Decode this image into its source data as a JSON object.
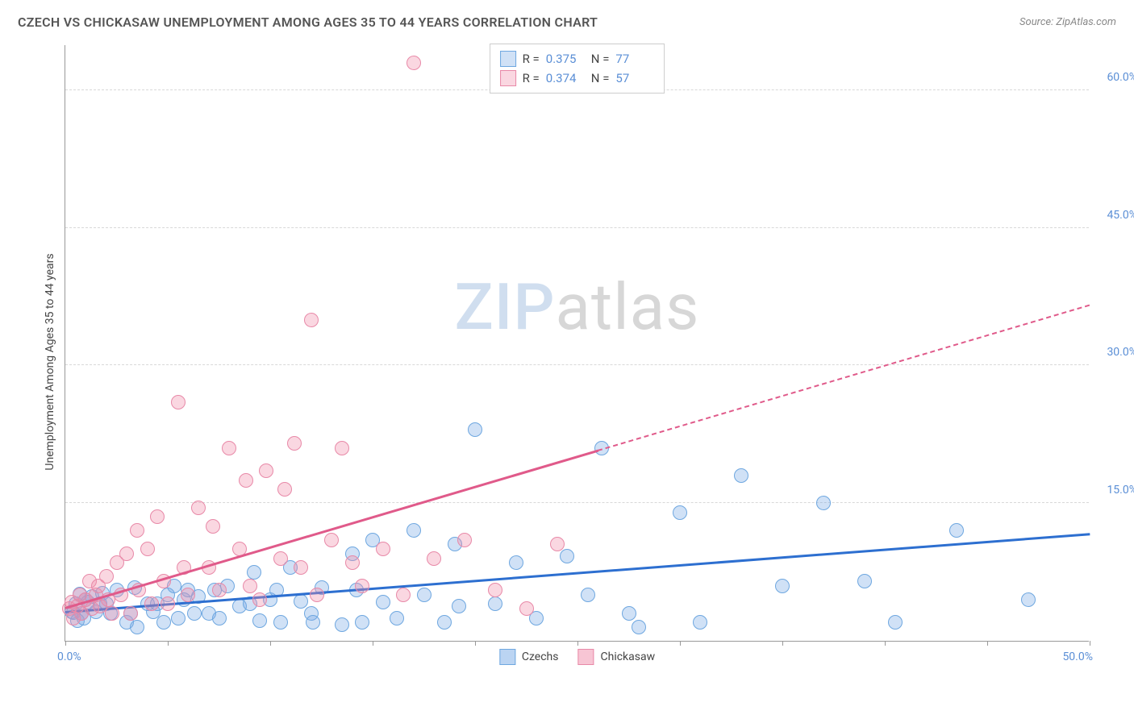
{
  "title": "CZECH VS CHICKASAW UNEMPLOYMENT AMONG AGES 35 TO 44 YEARS CORRELATION CHART",
  "source": "Source: ZipAtlas.com",
  "y_axis_label": "Unemployment Among Ages 35 to 44 years",
  "watermark": {
    "part1": "ZIP",
    "part2": "atlas"
  },
  "chart": {
    "type": "scatter",
    "xlim": [
      0,
      50
    ],
    "ylim": [
      0,
      65
    ],
    "x_tick_labels": {
      "left": "0.0%",
      "right": "50.0%"
    },
    "x_tick_positions": [
      0,
      5,
      10,
      15,
      20,
      25,
      30,
      35,
      40,
      45,
      50
    ],
    "y_ticks": [
      {
        "v": 15,
        "label": "15.0%"
      },
      {
        "v": 30,
        "label": "30.0%"
      },
      {
        "v": 45,
        "label": "45.0%"
      },
      {
        "v": 60,
        "label": "60.0%"
      }
    ],
    "grid_color": "#d8d8d8",
    "background_color": "#ffffff",
    "axis_color": "#999999",
    "series": [
      {
        "name": "Czechs",
        "fill": "rgba(120,170,230,0.35)",
        "stroke": "#6ea7e0",
        "line_color": "#2d6fd0",
        "marker_r": 9,
        "stats": {
          "R": "0.375",
          "N": "77"
        },
        "trend": {
          "x1": 0,
          "y1": 3.0,
          "x2": 50,
          "y2": 11.5,
          "solid_until_x": 50
        },
        "points": [
          [
            0.3,
            3.2
          ],
          [
            0.4,
            3.1
          ],
          [
            0.5,
            4.0
          ],
          [
            0.6,
            2.2
          ],
          [
            0.7,
            5.1
          ],
          [
            0.8,
            3.0
          ],
          [
            0.9,
            2.5
          ],
          [
            1.0,
            4.5
          ],
          [
            1.1,
            4.2
          ],
          [
            1.3,
            4.8
          ],
          [
            1.5,
            3.2
          ],
          [
            1.7,
            4.0
          ],
          [
            1.8,
            5.2
          ],
          [
            2.0,
            4.0
          ],
          [
            2.2,
            3.0
          ],
          [
            2.5,
            5.5
          ],
          [
            3.0,
            2.0
          ],
          [
            3.2,
            3.0
          ],
          [
            3.4,
            5.8
          ],
          [
            3.5,
            1.5
          ],
          [
            4.0,
            4.0
          ],
          [
            4.3,
            3.2
          ],
          [
            4.5,
            4.0
          ],
          [
            4.8,
            2.0
          ],
          [
            5.0,
            5.0
          ],
          [
            5.3,
            6.0
          ],
          [
            5.5,
            2.5
          ],
          [
            5.8,
            4.5
          ],
          [
            6.0,
            5.5
          ],
          [
            6.3,
            3.0
          ],
          [
            6.5,
            4.8
          ],
          [
            7.0,
            3.0
          ],
          [
            7.3,
            5.5
          ],
          [
            7.5,
            2.5
          ],
          [
            7.9,
            6.0
          ],
          [
            8.5,
            3.8
          ],
          [
            9.0,
            4.0
          ],
          [
            9.2,
            7.5
          ],
          [
            9.5,
            2.2
          ],
          [
            10.0,
            4.5
          ],
          [
            10.3,
            5.5
          ],
          [
            10.5,
            2.0
          ],
          [
            11.0,
            8.0
          ],
          [
            11.5,
            4.3
          ],
          [
            12.0,
            3.0
          ],
          [
            12.1,
            2.0
          ],
          [
            12.5,
            5.8
          ],
          [
            13.5,
            1.8
          ],
          [
            14.0,
            9.5
          ],
          [
            14.2,
            5.5
          ],
          [
            14.5,
            2.0
          ],
          [
            15.0,
            11.0
          ],
          [
            15.5,
            4.2
          ],
          [
            16.2,
            2.5
          ],
          [
            17.0,
            12.0
          ],
          [
            17.5,
            5.0
          ],
          [
            18.5,
            2.0
          ],
          [
            19.0,
            10.5
          ],
          [
            19.2,
            3.8
          ],
          [
            20.0,
            23.0
          ],
          [
            21.0,
            4.0
          ],
          [
            22.0,
            8.5
          ],
          [
            23.0,
            2.5
          ],
          [
            24.5,
            9.2
          ],
          [
            25.5,
            5.0
          ],
          [
            26.2,
            21.0
          ],
          [
            27.5,
            3.0
          ],
          [
            28.0,
            1.5
          ],
          [
            30.0,
            14.0
          ],
          [
            31.0,
            2.0
          ],
          [
            33.0,
            18.0
          ],
          [
            35.0,
            6.0
          ],
          [
            37.0,
            15.0
          ],
          [
            39.0,
            6.5
          ],
          [
            40.5,
            2.0
          ],
          [
            43.5,
            12.0
          ],
          [
            47.0,
            4.5
          ]
        ]
      },
      {
        "name": "Chickasaw",
        "fill": "rgba(240,140,170,0.35)",
        "stroke": "#e889a8",
        "line_color": "#e05a8a",
        "marker_r": 9,
        "stats": {
          "R": "0.374",
          "N": "57"
        },
        "trend": {
          "x1": 0,
          "y1": 3.5,
          "x2": 50,
          "y2": 36.5,
          "solid_until_x": 26
        },
        "points": [
          [
            0.2,
            3.5
          ],
          [
            0.3,
            4.2
          ],
          [
            0.4,
            2.5
          ],
          [
            0.6,
            3.8
          ],
          [
            0.7,
            5.0
          ],
          [
            0.8,
            3.0
          ],
          [
            1.0,
            4.5
          ],
          [
            1.2,
            6.5
          ],
          [
            1.3,
            3.5
          ],
          [
            1.5,
            5.0
          ],
          [
            1.6,
            6.0
          ],
          [
            1.7,
            3.8
          ],
          [
            2.0,
            7.0
          ],
          [
            2.1,
            4.5
          ],
          [
            2.3,
            3.0
          ],
          [
            2.5,
            8.5
          ],
          [
            2.7,
            5.0
          ],
          [
            3.0,
            9.5
          ],
          [
            3.2,
            3.0
          ],
          [
            3.5,
            12.0
          ],
          [
            3.6,
            5.5
          ],
          [
            4.0,
            10.0
          ],
          [
            4.2,
            4.0
          ],
          [
            4.5,
            13.5
          ],
          [
            4.8,
            6.5
          ],
          [
            5.0,
            4.0
          ],
          [
            5.5,
            26.0
          ],
          [
            5.8,
            8.0
          ],
          [
            6.0,
            5.0
          ],
          [
            6.5,
            14.5
          ],
          [
            7.0,
            8.0
          ],
          [
            7.2,
            12.5
          ],
          [
            7.5,
            5.5
          ],
          [
            8.0,
            21.0
          ],
          [
            8.5,
            10.0
          ],
          [
            8.8,
            17.5
          ],
          [
            9.0,
            6.0
          ],
          [
            9.5,
            4.5
          ],
          [
            9.8,
            18.5
          ],
          [
            10.5,
            9.0
          ],
          [
            10.7,
            16.5
          ],
          [
            11.2,
            21.5
          ],
          [
            11.5,
            8.0
          ],
          [
            12.0,
            35.0
          ],
          [
            12.3,
            5.0
          ],
          [
            13.0,
            11.0
          ],
          [
            13.5,
            21.0
          ],
          [
            14.0,
            8.5
          ],
          [
            14.5,
            6.0
          ],
          [
            15.5,
            10.0
          ],
          [
            16.5,
            5.0
          ],
          [
            17.0,
            63.0
          ],
          [
            18.0,
            9.0
          ],
          [
            19.5,
            11.0
          ],
          [
            21.0,
            5.5
          ],
          [
            22.5,
            3.5
          ],
          [
            24.0,
            10.5
          ]
        ]
      }
    ]
  },
  "legend_bottom": [
    {
      "label": "Czechs",
      "fill": "rgba(120,170,230,0.5)",
      "stroke": "#6ea7e0"
    },
    {
      "label": "Chickasaw",
      "fill": "rgba(240,140,170,0.5)",
      "stroke": "#e889a8"
    }
  ],
  "legend_top_labels": {
    "R": "R =",
    "N": "N ="
  }
}
